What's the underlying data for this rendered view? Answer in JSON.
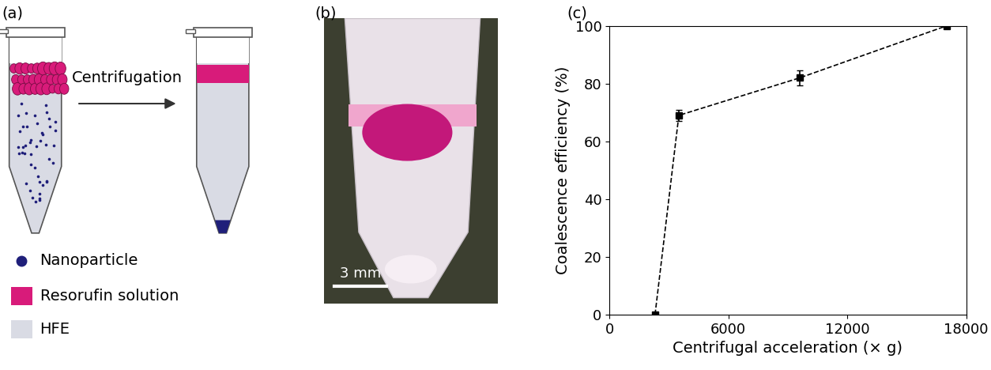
{
  "diagram": {
    "label": "(a)",
    "arrow_label": "Centrifugation",
    "legend": [
      {
        "label": "Nanoparticle",
        "color": "#1f1f7a"
      },
      {
        "label": "Resorufin solution",
        "color": "#d81b7a"
      },
      {
        "label": "HFE",
        "color": "#d9dbe4"
      }
    ]
  },
  "photo": {
    "label": "(b)",
    "scale_bar": "3 mm"
  },
  "chart_data": {
    "type": "line",
    "annotations": [
      "(c)"
    ],
    "x_label": "Centrifugal acceleration (× g)",
    "y_label": "Coalescence efficiency (%)",
    "x": [
      2300,
      3500,
      9600,
      17000
    ],
    "values": [
      0,
      69,
      82,
      100
    ],
    "errors": [
      0.5,
      2,
      2.5,
      0.5
    ],
    "color": "#000000",
    "marker": "square",
    "line_style": "dashed",
    "xlim": [
      0,
      18000
    ],
    "xticks": [
      0,
      6000,
      12000,
      18000
    ],
    "ylim": [
      0,
      100
    ],
    "yticks": [
      0,
      20,
      40,
      60,
      80,
      100
    ]
  }
}
